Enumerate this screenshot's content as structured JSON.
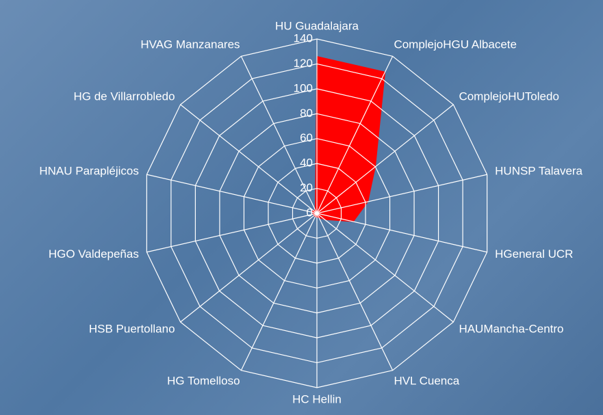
{
  "chart_data": {
    "type": "radar",
    "categories": [
      "HU Guadalajara",
      "ComplejoHGU Albacete",
      "ComplejoHUToledo",
      "HUNSP Talavera",
      "HGeneral UCR",
      "HAUMancha-Centro",
      "HVL Cuenca",
      "HC Hellin",
      "HG Tomelloso",
      "HSB Puertollano",
      "HGO Valdepeñas",
      "HNAU Parapléjicos",
      "HG de Villarrobledo",
      "HVAG Manzanares"
    ],
    "series": [
      {
        "color": "#ff0000",
        "values": [
          126,
          126,
          60,
          42,
          30,
          8,
          4,
          3,
          3,
          3,
          3,
          4,
          4,
          3
        ]
      }
    ],
    "ylim": [
      0,
      140
    ],
    "yticks": [
      0,
      20,
      40,
      60,
      80,
      100,
      120,
      140
    ],
    "grid": true
  }
}
